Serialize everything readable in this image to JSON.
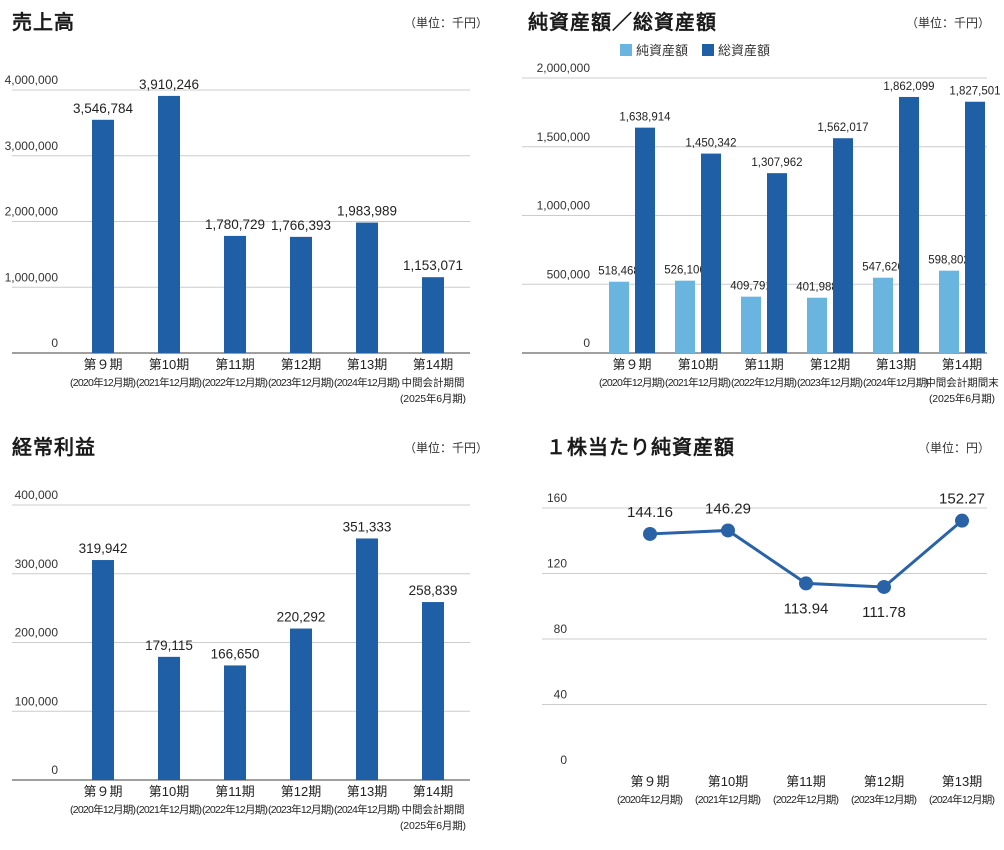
{
  "colors": {
    "dark": "#1f5fa5",
    "light": "#6ab4e0",
    "grid": "#cccccc",
    "axis": "#666666",
    "line": "#2a62a8"
  },
  "charts": [
    {
      "id": "sales",
      "title": "売上高",
      "unit": "（単位：千円）",
      "chart_data": {
        "type": "bar",
        "categories": [
          "第９期",
          "第10期",
          "第11期",
          "第12期",
          "第13期",
          "第14期"
        ],
        "sublabels": [
          [
            "(2020年12月期)"
          ],
          [
            "(2021年12月期)"
          ],
          [
            "(2022年12月期)"
          ],
          [
            "(2023年12月期)"
          ],
          [
            "(2024年12月期)"
          ],
          [
            "中間会計期間",
            "(2025年6月期)"
          ]
        ],
        "series": [
          {
            "values": [
              3546784,
              3910246,
              1780729,
              1766393,
              1983989,
              1153071
            ]
          }
        ],
        "value_labels": [
          [
            "3,546,784",
            "3,910,246",
            "1,780,729",
            "1,766,393",
            "1,983,989",
            "1,153,071"
          ]
        ],
        "yticks": [
          "0",
          "1,000,000",
          "2,000,000",
          "3,000,000",
          "4,000,000"
        ],
        "ylim": [
          0,
          4000000
        ]
      }
    },
    {
      "id": "assets",
      "title": "純資産額／総資産額",
      "unit": "（単位：千円）",
      "chart_data": {
        "type": "bar",
        "categories": [
          "第９期",
          "第10期",
          "第11期",
          "第12期",
          "第13期",
          "第14期"
        ],
        "sublabels": [
          [
            "(2020年12月期)"
          ],
          [
            "(2021年12月期)"
          ],
          [
            "(2022年12月期)"
          ],
          [
            "(2023年12月期)"
          ],
          [
            "(2024年12月期)"
          ],
          [
            "中間会計期間末",
            "(2025年6月期)"
          ]
        ],
        "series": [
          {
            "name": "純資産額",
            "values": [
              518468,
              526106,
              409791,
              401988,
              547626,
              598802
            ]
          },
          {
            "name": "総資産額",
            "values": [
              1638914,
              1450342,
              1307962,
              1562017,
              1862099,
              1827501
            ]
          }
        ],
        "value_labels": [
          [
            "518,468",
            "526,106",
            "409,791",
            "401,988",
            "547,626",
            "598,802"
          ],
          [
            "1,638,914",
            "1,450,342",
            "1,307,962",
            "1,562,017",
            "1,862,099",
            "1,827,501"
          ]
        ],
        "yticks": [
          "0",
          "500,000",
          "1,000,000",
          "1,500,000",
          "2,000,000"
        ],
        "ylim": [
          0,
          2000000
        ],
        "legend": "top"
      }
    },
    {
      "id": "ordinary",
      "title": "経常利益",
      "unit": "（単位：千円）",
      "chart_data": {
        "type": "bar",
        "categories": [
          "第９期",
          "第10期",
          "第11期",
          "第12期",
          "第13期",
          "第14期"
        ],
        "sublabels": [
          [
            "(2020年12月期)"
          ],
          [
            "(2021年12月期)"
          ],
          [
            "(2022年12月期)"
          ],
          [
            "(2023年12月期)"
          ],
          [
            "(2024年12月期)"
          ],
          [
            "中間会計期間",
            "(2025年6月期)"
          ]
        ],
        "series": [
          {
            "values": [
              319942,
              179115,
              166650,
              220292,
              351333,
              258839
            ]
          }
        ],
        "value_labels": [
          [
            "319,942",
            "179,115",
            "166,650",
            "220,292",
            "351,333",
            "258,839"
          ]
        ],
        "yticks": [
          "0",
          "100,000",
          "200,000",
          "300,000",
          "400,000"
        ],
        "ylim": [
          0,
          400000
        ]
      }
    },
    {
      "id": "bps",
      "title": "１株当たり純資産額",
      "unit": "（単位：円）",
      "chart_data": {
        "type": "line",
        "categories": [
          "第９期",
          "第10期",
          "第11期",
          "第12期",
          "第13期"
        ],
        "sublabels": [
          [
            "(2020年12月期)"
          ],
          [
            "(2021年12月期)"
          ],
          [
            "(2022年12月期)"
          ],
          [
            "(2023年12月期)"
          ],
          [
            "(2024年12月期)"
          ]
        ],
        "series": [
          {
            "values": [
              144.16,
              146.29,
              113.94,
              111.78,
              152.27
            ]
          }
        ],
        "value_labels": [
          [
            "144.16",
            "146.29",
            "113.94",
            "111.78",
            "152.27"
          ]
        ],
        "label_side": [
          "above",
          "above",
          "below",
          "below",
          "above"
        ],
        "yticks": [
          "0",
          "40",
          "80",
          "120",
          "160"
        ],
        "ylim": [
          0,
          160
        ]
      }
    }
  ]
}
